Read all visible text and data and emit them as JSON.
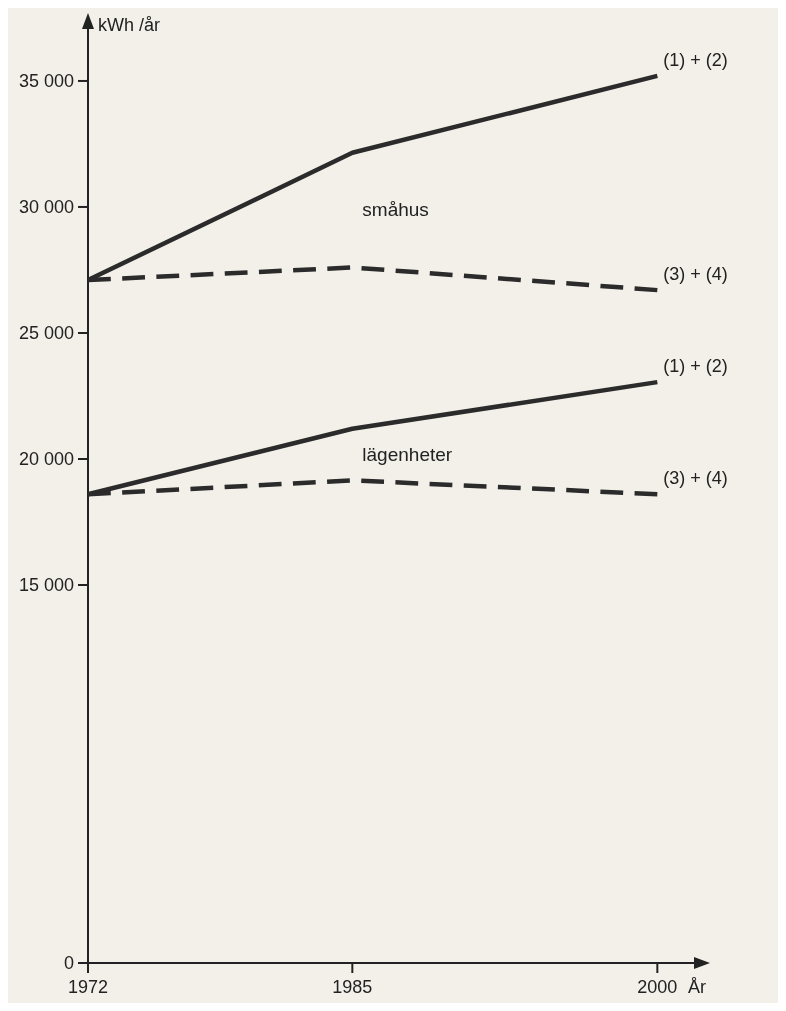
{
  "chart_data": {
    "type": "line",
    "xlabel": "År",
    "ylabel": "kWh /år",
    "x": [
      1972,
      1985,
      2000
    ],
    "series": [
      {
        "name": "(1) + (2)",
        "color": "#2b2b2b",
        "line_style": "solid",
        "values": [
          27100,
          32150,
          35200
        ]
      },
      {
        "name": "(3) + (4)",
        "color": "#2b2b2b",
        "line_style": "dashed",
        "values": [
          27100,
          27600,
          26700
        ]
      },
      {
        "name": "(1) + (2)",
        "color": "#2b2b2b",
        "line_style": "solid",
        "values": [
          18600,
          21200,
          23050
        ]
      },
      {
        "name": "(3) + (4)",
        "color": "#2b2b2b",
        "line_style": "dashed",
        "values": [
          18600,
          19150,
          18600
        ]
      }
    ],
    "annotations": [
      "småhus",
      "lägenheter"
    ],
    "xlim": [
      1972,
      2002
    ],
    "xticks": [
      1972,
      1985,
      2000
    ],
    "ylim": [
      0,
      37300
    ],
    "yticks": [
      0,
      {
        "value": 15000,
        "label": "15 000"
      },
      {
        "value": 20000,
        "label": "20 000"
      },
      {
        "value": 25000,
        "label": "25 000"
      },
      {
        "value": 30000,
        "label": "30 000"
      },
      {
        "value": 35000,
        "label": "35 000"
      }
    ],
    "grid": false,
    "marker": "none"
  }
}
